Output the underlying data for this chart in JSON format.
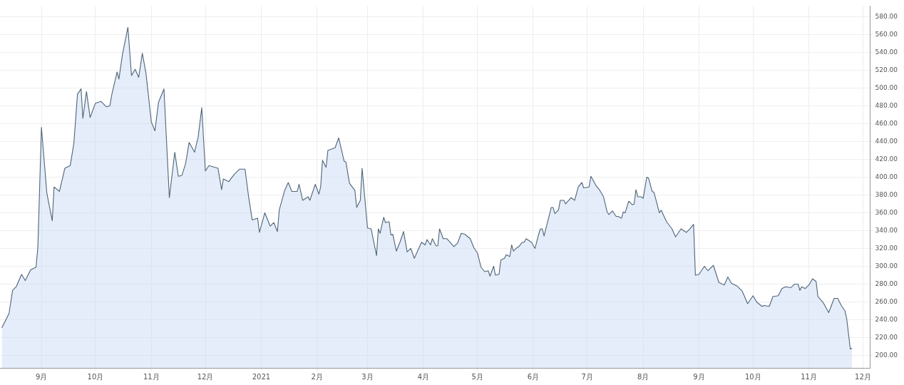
{
  "chart_data": {
    "type": "area",
    "legend": false,
    "grid": true,
    "marker": "none",
    "xlim": [
      "2020-08-09",
      "2021-12-05"
    ],
    "xticks": [
      {
        "value": "2020-09-01",
        "label": "9月"
      },
      {
        "value": "2020-10-01",
        "label": "10月"
      },
      {
        "value": "2020-11-01",
        "label": "11月"
      },
      {
        "value": "2020-12-01",
        "label": "12月"
      },
      {
        "value": "2021-01-01",
        "label": "2021"
      },
      {
        "value": "2021-02-01",
        "label": "2月"
      },
      {
        "value": "2021-03-01",
        "label": "3月"
      },
      {
        "value": "2021-04-01",
        "label": "4月"
      },
      {
        "value": "2021-05-01",
        "label": "5月"
      },
      {
        "value": "2021-06-01",
        "label": "6月"
      },
      {
        "value": "2021-07-01",
        "label": "7月"
      },
      {
        "value": "2021-08-01",
        "label": "8月"
      },
      {
        "value": "2021-09-01",
        "label": "9月"
      },
      {
        "value": "2021-10-01",
        "label": "10月"
      },
      {
        "value": "2021-11-01",
        "label": "11月"
      },
      {
        "value": "2021-12-01",
        "label": "12月"
      }
    ],
    "ylim": [
      186,
      592
    ],
    "yticks": [
      {
        "value": 200,
        "label": "200.00"
      },
      {
        "value": 220,
        "label": "220.00"
      },
      {
        "value": 240,
        "label": "240.00"
      },
      {
        "value": 260,
        "label": "260.00"
      },
      {
        "value": 280,
        "label": "280.00"
      },
      {
        "value": 300,
        "label": "300.00"
      },
      {
        "value": 320,
        "label": "320.00"
      },
      {
        "value": 340,
        "label": "340.00"
      },
      {
        "value": 360,
        "label": "360.00"
      },
      {
        "value": 380,
        "label": "380.00"
      },
      {
        "value": 400,
        "label": "400.00"
      },
      {
        "value": 420,
        "label": "420.00"
      },
      {
        "value": 440,
        "label": "440.00"
      },
      {
        "value": 460,
        "label": "460.00"
      },
      {
        "value": 480,
        "label": "480.00"
      },
      {
        "value": 500,
        "label": "500.00"
      },
      {
        "value": 520,
        "label": "520.00"
      },
      {
        "value": 540,
        "label": "540.00"
      },
      {
        "value": 560,
        "label": "560.00"
      },
      {
        "value": 580,
        "label": "580.00"
      }
    ],
    "series": [
      {
        "color": "#4f6478",
        "x": [
          "2020-08-10",
          "2020-08-14",
          "2020-08-16",
          "2020-08-18",
          "2020-08-21",
          "2020-08-23",
          "2020-08-26",
          "2020-08-29",
          "2020-08-30",
          "2020-09-01",
          "2020-09-04",
          "2020-09-07",
          "2020-09-08",
          "2020-09-11",
          "2020-09-14",
          "2020-09-17",
          "2020-09-19",
          "2020-09-21",
          "2020-09-23",
          "2020-09-24",
          "2020-09-26",
          "2020-09-28",
          "2020-10-01",
          "2020-10-04",
          "2020-10-07",
          "2020-10-09",
          "2020-10-10",
          "2020-10-13",
          "2020-10-14",
          "2020-10-16",
          "2020-10-19",
          "2020-10-21",
          "2020-10-23",
          "2020-10-25",
          "2020-10-27",
          "2020-10-29",
          "2020-11-01",
          "2020-11-03",
          "2020-11-05",
          "2020-11-08",
          "2020-11-11",
          "2020-11-14",
          "2020-11-16",
          "2020-11-18",
          "2020-11-20",
          "2020-11-22",
          "2020-11-25",
          "2020-11-27",
          "2020-11-29",
          "2020-12-01",
          "2020-12-03",
          "2020-12-08",
          "2020-12-10",
          "2020-12-11",
          "2020-12-14",
          "2020-12-17",
          "2020-12-20",
          "2020-12-23",
          "2020-12-25",
          "2020-12-27",
          "2020-12-30",
          "2020-12-31",
          "2021-01-03",
          "2021-01-06",
          "2021-01-08",
          "2021-01-10",
          "2021-01-11",
          "2021-01-14",
          "2021-01-16",
          "2021-01-18",
          "2021-01-21",
          "2021-01-22",
          "2021-01-24",
          "2021-01-27",
          "2021-01-28",
          "2021-01-31",
          "2021-02-02",
          "2021-02-03",
          "2021-02-04",
          "2021-02-06",
          "2021-02-07",
          "2021-02-11",
          "2021-02-13",
          "2021-02-16",
          "2021-02-17",
          "2021-02-19",
          "2021-02-22",
          "2021-02-23",
          "2021-02-25",
          "2021-02-26",
          "2021-03-01",
          "2021-03-03",
          "2021-03-06",
          "2021-03-07",
          "2021-03-08",
          "2021-03-10",
          "2021-03-11",
          "2021-03-13",
          "2021-03-14",
          "2021-03-15",
          "2021-03-17",
          "2021-03-19",
          "2021-03-21",
          "2021-03-23",
          "2021-03-25",
          "2021-03-27",
          "2021-03-31",
          "2021-04-02",
          "2021-04-03",
          "2021-04-05",
          "2021-04-06",
          "2021-04-08",
          "2021-04-09",
          "2021-04-10",
          "2021-04-12",
          "2021-04-14",
          "2021-04-18",
          "2021-04-20",
          "2021-04-22",
          "2021-04-24",
          "2021-04-27",
          "2021-04-29",
          "2021-05-01",
          "2021-05-03",
          "2021-05-05",
          "2021-05-07",
          "2021-05-08",
          "2021-05-10",
          "2021-05-11",
          "2021-05-13",
          "2021-05-14",
          "2021-05-16",
          "2021-05-17",
          "2021-05-19",
          "2021-05-20",
          "2021-05-21",
          "2021-05-23",
          "2021-05-24",
          "2021-05-26",
          "2021-05-27",
          "2021-05-28",
          "2021-05-31",
          "2021-06-02",
          "2021-06-04",
          "2021-06-05",
          "2021-06-06",
          "2021-06-07",
          "2021-06-11",
          "2021-06-12",
          "2021-06-13",
          "2021-06-15",
          "2021-06-16",
          "2021-06-18",
          "2021-06-19",
          "2021-06-22",
          "2021-06-24",
          "2021-06-26",
          "2021-06-28",
          "2021-06-29",
          "2021-07-02",
          "2021-07-03",
          "2021-07-06",
          "2021-07-08",
          "2021-07-10",
          "2021-07-12",
          "2021-07-13",
          "2021-07-15",
          "2021-07-17",
          "2021-07-18",
          "2021-07-20",
          "2021-07-21",
          "2021-07-22",
          "2021-07-24",
          "2021-07-26",
          "2021-07-27",
          "2021-07-28",
          "2021-07-29",
          "2021-07-31",
          "2021-08-01",
          "2021-08-03",
          "2021-08-04",
          "2021-08-06",
          "2021-08-07",
          "2021-08-10",
          "2021-08-11",
          "2021-08-14",
          "2021-08-17",
          "2021-08-19",
          "2021-08-22",
          "2021-08-25",
          "2021-08-27",
          "2021-08-29",
          "2021-08-30",
          "2021-09-01",
          "2021-09-04",
          "2021-09-06",
          "2021-09-09",
          "2021-09-12",
          "2021-09-15",
          "2021-09-17",
          "2021-09-19",
          "2021-09-22",
          "2021-09-25",
          "2021-09-28",
          "2021-10-01",
          "2021-10-03",
          "2021-10-06",
          "2021-10-07",
          "2021-10-10",
          "2021-10-12",
          "2021-10-15",
          "2021-10-17",
          "2021-10-19",
          "2021-10-22",
          "2021-10-24",
          "2021-10-26",
          "2021-10-27",
          "2021-10-28",
          "2021-10-30",
          "2021-11-01",
          "2021-11-03",
          "2021-11-05",
          "2021-11-06",
          "2021-11-09",
          "2021-11-12",
          "2021-11-15",
          "2021-11-17",
          "2021-11-19",
          "2021-11-21",
          "2021-11-22",
          "2021-11-24",
          "2021-11-25"
        ],
        "values": [
          231,
          247,
          273,
          277,
          291,
          284,
          296,
          299,
          321,
          456,
          382,
          351,
          389,
          384,
          410,
          413,
          438,
          493,
          499,
          466,
          496,
          467,
          483,
          485,
          479,
          480,
          492,
          518,
          510,
          538,
          568,
          514,
          521,
          512,
          539,
          517,
          462,
          452,
          484,
          499,
          377,
          428,
          401,
          402,
          415,
          439,
          428,
          445,
          478,
          407,
          413,
          410,
          386,
          398,
          395,
          403,
          409,
          409,
          378,
          352,
          354,
          338,
          360,
          345,
          349,
          339,
          363,
          385,
          394,
          384,
          384,
          392,
          374,
          378,
          374,
          392,
          381,
          389,
          419,
          411,
          430,
          433,
          444,
          418,
          417,
          393,
          385,
          366,
          374,
          410,
          343,
          342,
          312,
          342,
          337,
          355,
          349,
          350,
          335,
          336,
          317,
          327,
          339,
          316,
          320,
          309,
          327,
          324,
          330,
          324,
          331,
          323,
          323,
          342,
          331,
          331,
          322,
          326,
          337,
          336,
          331,
          321,
          315,
          299,
          294,
          295,
          289,
          300,
          290,
          291,
          307,
          309,
          313,
          311,
          324,
          317,
          321,
          322,
          327,
          327,
          331,
          327,
          320,
          336,
          342,
          342,
          334,
          366,
          366,
          359,
          363,
          374,
          374,
          370,
          377,
          374,
          389,
          394,
          388,
          389,
          401,
          390,
          385,
          378,
          361,
          358,
          362,
          356,
          356,
          354,
          361,
          360,
          373,
          369,
          370,
          386,
          378,
          378,
          376,
          400,
          399,
          384,
          383,
          360,
          363,
          350,
          342,
          333,
          342,
          338,
          342,
          347,
          290,
          291,
          300,
          295,
          301,
          282,
          279,
          288,
          281,
          278,
          272,
          258,
          267,
          260,
          255,
          256,
          255,
          266,
          267,
          275,
          277,
          276,
          280,
          280,
          273,
          277,
          275,
          279,
          286,
          283,
          266,
          259,
          248,
          264,
          264,
          256,
          250,
          241,
          207,
          208
        ]
      }
    ]
  }
}
